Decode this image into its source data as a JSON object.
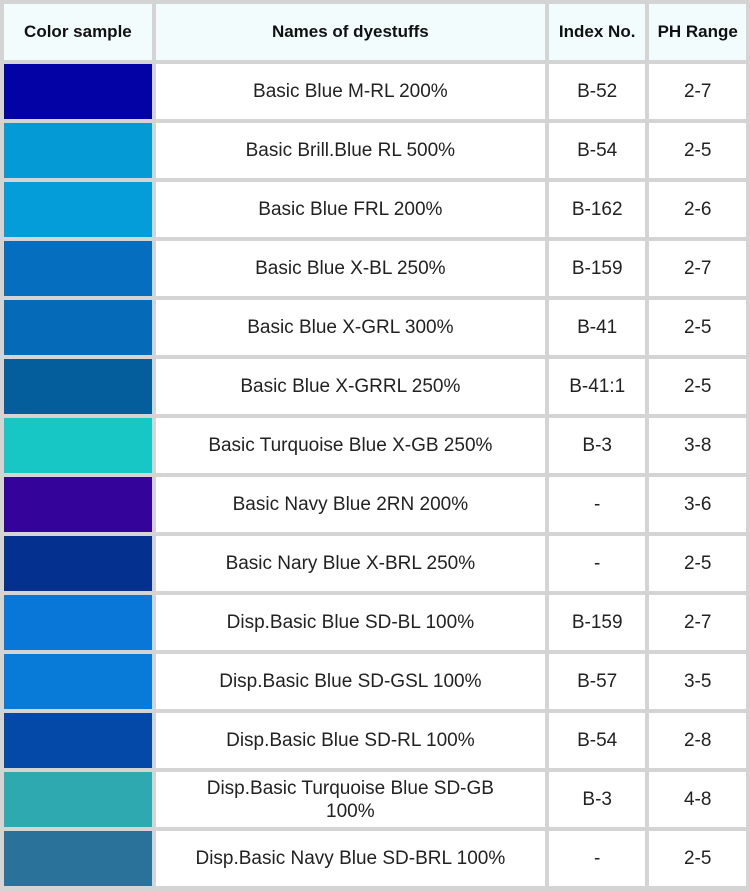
{
  "headers": {
    "color_sample": "Color sample",
    "names": "Names of dyestuffs",
    "index_no": "Index No.",
    "ph_range": "PH Range"
  },
  "rows": [
    {
      "color": "#0202a5",
      "name": "Basic Blue M-RL 200%",
      "index": "B-52",
      "ph": "2-7"
    },
    {
      "color": "#049ad6",
      "name": "Basic Brill.Blue RL 500%",
      "index": "B-54",
      "ph": "2-5"
    },
    {
      "color": "#049cd9",
      "name": "Basic Blue FRL 200%",
      "index": "B-162",
      "ph": "2-6"
    },
    {
      "color": "#056ebf",
      "name": "Basic Blue X-BL 250%",
      "index": "B-159",
      "ph": "2-7"
    },
    {
      "color": "#056bb9",
      "name": "Basic Blue X-GRL 300%",
      "index": "B-41",
      "ph": "2-5"
    },
    {
      "color": "#045e9c",
      "name": "Basic Blue X-GRRL 250%",
      "index": "B-41:1",
      "ph": "2-5"
    },
    {
      "color": "#17c7c6",
      "name": "Basic Turquoise Blue X-GB 250%",
      "index": "B-3",
      "ph": "3-8"
    },
    {
      "color": "#33039a",
      "name": "Basic Navy Blue 2RN 200%",
      "index": "-",
      "ph": "3-6"
    },
    {
      "color": "#04318f",
      "name": "Basic Nary Blue X-BRL 250%",
      "index": "-",
      "ph": "2-5"
    },
    {
      "color": "#0877d8",
      "name": "Disp.Basic Blue SD-BL 100%",
      "index": "B-159",
      "ph": "2-7"
    },
    {
      "color": "#087bd9",
      "name": "Disp.Basic Blue SD-GSL 100%",
      "index": "B-57",
      "ph": "3-5"
    },
    {
      "color": "#0449a8",
      "name": "Disp.Basic Blue SD-RL 100%",
      "index": "B-54",
      "ph": "2-8"
    },
    {
      "color": "#2fa9b0",
      "name": "Disp.Basic Turquoise Blue SD-GB 100%",
      "index": "B-3",
      "ph": "4-8"
    },
    {
      "color": "#2a7299",
      "name": "Disp.Basic Navy Blue SD-BRL 100%",
      "index": "-",
      "ph": "2-5"
    }
  ]
}
